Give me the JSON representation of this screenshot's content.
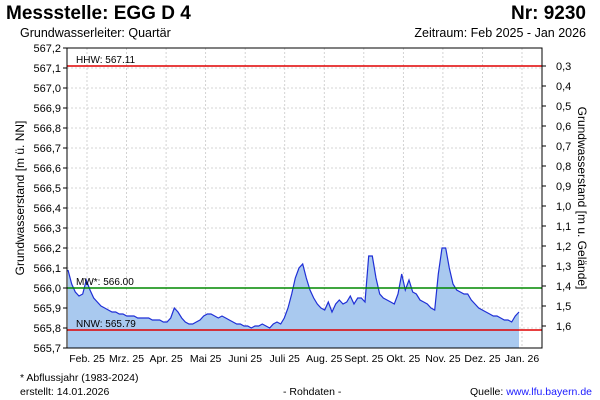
{
  "header": {
    "title": "Messstelle: EGG D 4",
    "number": "Nr: 9230",
    "aquifer": "Grundwasserleiter: Quartär",
    "period": "Zeitraum: Feb 2025 - Jan 2026"
  },
  "footer": {
    "footnote": "* Abflussjahr (1983-2024)",
    "created": "erstellt:  14.01.2026",
    "raw": "- Rohdaten -",
    "source_prefix": "Quelle: ",
    "source_link": "www.lfu.bayern.de"
  },
  "colors": {
    "area_fill": "#a9c9ef",
    "line": "#1f2fd6",
    "hhw": "#e00000",
    "mw": "#008800",
    "nnw": "#e00000",
    "grid": "#c8c8c8"
  },
  "chart_data": {
    "type": "area",
    "ylabel_left": "Grundwasserstand [m ü. NN]",
    "ylabel_right": "Grundwasserstand [m u. Gelände]",
    "ylim": [
      565.7,
      567.2
    ],
    "yticks_left": [
      "567,2",
      "567,1",
      "567,0",
      "566,9",
      "566,8",
      "566,7",
      "566,6",
      "566,5",
      "566,4",
      "566,3",
      "566,2",
      "566,1",
      "566,0",
      "565,9",
      "565,8",
      "565,7"
    ],
    "yticks_right": [
      "0,3",
      "0,4",
      "0,5",
      "0,6",
      "0,7",
      "0,8",
      "0,9",
      "1,0",
      "1,1",
      "1,2",
      "1,3",
      "1,4",
      "1,5",
      "1,6"
    ],
    "xticks": [
      "Feb. 25",
      "Mrz. 25",
      "Apr. 25",
      "Mai 25",
      "Juni 25",
      "Juli 25",
      "Aug. 25",
      "Sept. 25",
      "Okt. 25",
      "Nov. 25",
      "Dez. 25",
      "Jan. 26"
    ],
    "grid": true,
    "reference_lines": [
      {
        "label": "HHW: 567.11",
        "value": 567.11
      },
      {
        "label": "MW*: 566.00",
        "value": 566.0
      },
      {
        "label": "NNW: 565.79",
        "value": 565.79
      }
    ],
    "series": [
      {
        "x": [
          0,
          1,
          2,
          3,
          4,
          5,
          6,
          7,
          8,
          9,
          10,
          11,
          12,
          13,
          14,
          15,
          16,
          17,
          18,
          19,
          20,
          21,
          22,
          23,
          24,
          25,
          26,
          27,
          28,
          29,
          30,
          31,
          32,
          33,
          34,
          35,
          36,
          37,
          38,
          39,
          40,
          41,
          42,
          43,
          44,
          45,
          46,
          47,
          48,
          49,
          50,
          51,
          52,
          53,
          54,
          55,
          56,
          57,
          58,
          59,
          60,
          61,
          62,
          63,
          64,
          65,
          66,
          67,
          68,
          69,
          70,
          71,
          72,
          73,
          74,
          75,
          76,
          77,
          78,
          79,
          80,
          81,
          82,
          83,
          84,
          85,
          86,
          87,
          88,
          89,
          90,
          91,
          92,
          93,
          94,
          95,
          96,
          97,
          98,
          99,
          100,
          101,
          102,
          103,
          104,
          105,
          106,
          107,
          108,
          109,
          110,
          111,
          112,
          113,
          114,
          115,
          116,
          117,
          118,
          119,
          120,
          121,
          122,
          123
        ],
        "y": [
          566.09,
          566.02,
          565.98,
          565.96,
          565.97,
          566.04,
          565.99,
          565.95,
          565.93,
          565.91,
          565.9,
          565.89,
          565.88,
          565.88,
          565.87,
          565.87,
          565.86,
          565.86,
          565.86,
          565.85,
          565.85,
          565.85,
          565.85,
          565.84,
          565.84,
          565.84,
          565.83,
          565.83,
          565.85,
          565.9,
          565.88,
          565.85,
          565.83,
          565.82,
          565.82,
          565.83,
          565.84,
          565.86,
          565.87,
          565.87,
          565.86,
          565.85,
          565.86,
          565.85,
          565.84,
          565.83,
          565.82,
          565.82,
          565.81,
          565.81,
          565.8,
          565.81,
          565.81,
          565.82,
          565.81,
          565.8,
          565.82,
          565.83,
          565.82,
          565.85,
          565.9,
          565.97,
          566.05,
          566.1,
          566.12,
          566.05,
          565.99,
          565.95,
          565.92,
          565.9,
          565.89,
          565.93,
          565.88,
          565.92,
          565.94,
          565.92,
          565.93,
          565.96,
          565.92,
          565.95,
          565.95,
          565.93,
          566.16,
          566.16,
          566.05,
          565.97,
          565.95,
          565.94,
          565.93,
          565.92,
          565.97,
          566.07,
          565.99,
          566.04,
          565.98,
          565.97,
          565.94,
          565.93,
          565.92,
          565.9,
          565.89,
          566.07,
          566.2,
          566.2,
          566.1,
          566.02,
          565.99,
          565.98,
          565.97,
          565.97,
          565.94,
          565.92,
          565.9,
          565.89,
          565.88,
          565.87,
          565.86,
          565.86,
          565.85,
          565.84,
          565.84,
          565.83,
          565.86,
          565.88
        ]
      }
    ]
  }
}
